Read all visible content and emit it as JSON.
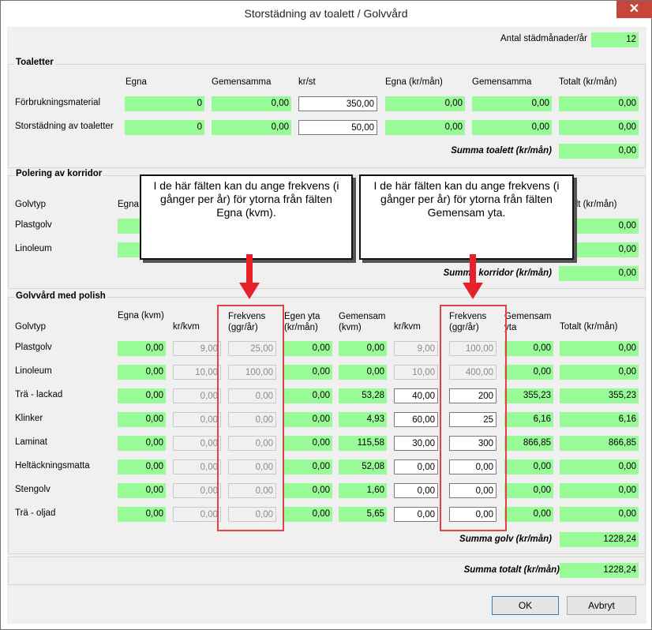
{
  "window": {
    "title": "Storstädning av toalett / Golvvård",
    "close_glyph": "✕"
  },
  "months": {
    "label": "Antal städmånader/år",
    "value": "12"
  },
  "toaletter": {
    "title": "Toaletter",
    "headers": {
      "egna": "Egna",
      "gemensamma": "Gemensamma",
      "krst": "kr/st",
      "egna_kr": "Egna (kr/mån)",
      "gem_kr": "Gemensamma",
      "totalt": "Totalt (kr/mån)"
    },
    "rows": [
      {
        "label": "Förbrukningsmaterial",
        "egna": "0",
        "gem": "0,00",
        "krst": "350,00",
        "egna_kr": "0,00",
        "gem_kr": "0,00",
        "tot": "0,00"
      },
      {
        "label": "Storstädning av toaletter",
        "egna": "0",
        "gem": "0,00",
        "krst": "50,00",
        "egna_kr": "0,00",
        "gem_kr": "0,00",
        "tot": "0,00"
      }
    ],
    "sum_label": "Summa toalett (kr/mån)",
    "sum_value": "0,00"
  },
  "korridor": {
    "title": "Polering av korridor",
    "headers": {
      "golvtyp": "Golvtyp",
      "egna": "Egna",
      "totalt": "Totalt (kr/mån)"
    },
    "rows": [
      {
        "label": "Plastgolv",
        "tot": "0,00"
      },
      {
        "label": "Linoleum",
        "tot": "0,00"
      }
    ],
    "sum_label": "Summa korridor (kr/mån)",
    "sum_value": "0,00"
  },
  "polish": {
    "title": "Golvvård med polish",
    "headers": {
      "golvtyp": "Golvtyp",
      "egna_kvm": "Egna (kvm)",
      "krkvm": "kr/kvm",
      "frekvens": "Frekvens (ggr/år)",
      "egen_yta": "Egen yta (kr/mån)",
      "gem_kvm": "Gemensam (kvm)",
      "krkvm2": "kr/kvm",
      "frekvens2": "Frekvens (ggr/år)",
      "gem_yta": "Gemensam yta",
      "totalt": "Totalt (kr/mån)"
    },
    "rows": [
      {
        "label": "Plastgolv",
        "egna": "0,00",
        "kr": "9,00",
        "frek": "25,00",
        "egen": "0,00",
        "gem": "0,00",
        "kr2": "9,00",
        "frek2": "100,00",
        "gemyta": "0,00",
        "tot": "0,00"
      },
      {
        "label": "Linoleum",
        "egna": "0,00",
        "kr": "10,00",
        "frek": "100,00",
        "egen": "0,00",
        "gem": "0,00",
        "kr2": "10,00",
        "frek2": "400,00",
        "gemyta": "0,00",
        "tot": "0,00"
      },
      {
        "label": "Trä - lackad",
        "egna": "0,00",
        "kr": "0,00",
        "frek": "0,00",
        "egen": "0,00",
        "gem": "53,28",
        "kr2": "40,00",
        "frek2": "200",
        "gemyta": "355,23",
        "tot": "355,23"
      },
      {
        "label": "Klinker",
        "egna": "0,00",
        "kr": "0,00",
        "frek": "0,00",
        "egen": "0,00",
        "gem": "4,93",
        "kr2": "60,00",
        "frek2": "25",
        "gemyta": "6,16",
        "tot": "6,16"
      },
      {
        "label": "Laminat",
        "egna": "0,00",
        "kr": "0,00",
        "frek": "0,00",
        "egen": "0,00",
        "gem": "115,58",
        "kr2": "30,00",
        "frek2": "300",
        "gemyta": "866,85",
        "tot": "866,85"
      },
      {
        "label": "Heltäckningsmatta",
        "egna": "0,00",
        "kr": "0,00",
        "frek": "0,00",
        "egen": "0,00",
        "gem": "52,08",
        "kr2": "0,00",
        "frek2": "0,00",
        "gemyta": "0,00",
        "tot": "0,00"
      },
      {
        "label": "Stengolv",
        "egna": "0,00",
        "kr": "0,00",
        "frek": "0,00",
        "egen": "0,00",
        "gem": "1,60",
        "kr2": "0,00",
        "frek2": "0,00",
        "gemyta": "0,00",
        "tot": "0,00"
      },
      {
        "label": "Trä - oljad",
        "egna": "0,00",
        "kr": "0,00",
        "frek": "0,00",
        "egen": "0,00",
        "gem": "5,65",
        "kr2": "0,00",
        "frek2": "0,00",
        "gemyta": "0,00",
        "tot": "0,00"
      }
    ],
    "sum_label": "Summa golv (kr/mån)",
    "sum_value": "1228,24"
  },
  "total": {
    "label": "Summa totalt (kr/mån)",
    "value": "1228,24"
  },
  "buttons": {
    "ok": "OK",
    "cancel": "Avbryt"
  },
  "callouts": {
    "left": "I de här fälten kan du ange frekvens (i gånger per år) för ytorna från fälten Egna (kvm).",
    "right": "I de här fälten kan du ange frekvens (i gånger per år) för ytorna från fälten Gemensam yta."
  },
  "colors": {
    "field_green": "#98fb98",
    "callout_red": "#e04343"
  }
}
